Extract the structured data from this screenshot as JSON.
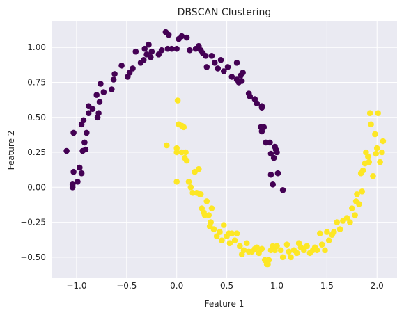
{
  "chart_data": {
    "type": "scatter",
    "title": "DBSCAN Clustering",
    "xlabel": "Feature 1",
    "ylabel": "Feature 2",
    "xlim": [
      -1.25,
      2.2
    ],
    "ylim": [
      -0.65,
      1.19
    ],
    "xticks": [
      -1.0,
      -0.5,
      0.0,
      0.5,
      1.0,
      1.5,
      2.0
    ],
    "yticks": [
      -0.5,
      -0.25,
      0.0,
      0.25,
      0.5,
      0.75,
      1.0
    ],
    "xtick_labels": [
      "−1.0",
      "−0.5",
      "0.0",
      "0.5",
      "1.0",
      "1.5",
      "2.0"
    ],
    "ytick_labels": [
      "−0.50",
      "−0.25",
      "0.00",
      "0.25",
      "0.50",
      "0.75",
      "1.00"
    ],
    "grid": true,
    "colors": {
      "background": "#eaeaf2",
      "grid": "#ffffff",
      "cluster_0": "#440154",
      "cluster_1": "#fde725"
    },
    "series": [
      {
        "color": "#440154",
        "points": [
          [
            -1.1,
            0.26
          ],
          [
            -1.04,
            0.0
          ],
          [
            -1.04,
            0.02
          ],
          [
            -1.03,
            0.11
          ],
          [
            -1.03,
            0.39
          ],
          [
            -0.99,
            0.04
          ],
          [
            -0.97,
            0.14
          ],
          [
            -0.95,
            0.1
          ],
          [
            -0.95,
            0.45
          ],
          [
            -0.93,
            0.48
          ],
          [
            -0.94,
            0.26
          ],
          [
            -0.92,
            0.32
          ],
          [
            -0.9,
            0.39
          ],
          [
            -0.91,
            0.27
          ],
          [
            -0.88,
            0.53
          ],
          [
            -0.88,
            0.58
          ],
          [
            -0.84,
            0.56
          ],
          [
            -0.8,
            0.66
          ],
          [
            -0.79,
            0.5
          ],
          [
            -0.78,
            0.53
          ],
          [
            -0.77,
            0.61
          ],
          [
            -0.76,
            0.74
          ],
          [
            -0.73,
            0.68
          ],
          [
            -0.65,
            0.7
          ],
          [
            -0.63,
            0.77
          ],
          [
            -0.62,
            0.81
          ],
          [
            -0.55,
            0.87
          ],
          [
            -0.49,
            0.79
          ],
          [
            -0.47,
            0.82
          ],
          [
            -0.44,
            0.85
          ],
          [
            -0.41,
            0.97
          ],
          [
            -0.36,
            0.89
          ],
          [
            -0.33,
            0.91
          ],
          [
            -0.32,
            0.99
          ],
          [
            -0.3,
            0.95
          ],
          [
            -0.26,
            0.93
          ],
          [
            -0.28,
            1.02
          ],
          [
            -0.25,
            0.97
          ],
          [
            -0.18,
            0.95
          ],
          [
            -0.15,
            0.98
          ],
          [
            -0.11,
            1.11
          ],
          [
            -0.09,
            0.99
          ],
          [
            -0.08,
            1.09
          ],
          [
            -0.05,
            0.99
          ],
          [
            0.0,
            0.99
          ],
          [
            0.02,
            1.06
          ],
          [
            0.05,
            1.08
          ],
          [
            0.1,
            1.07
          ],
          [
            0.13,
            0.98
          ],
          [
            0.19,
            0.99
          ],
          [
            0.22,
            1.01
          ],
          [
            0.24,
            0.98
          ],
          [
            0.26,
            0.96
          ],
          [
            0.29,
            0.94
          ],
          [
            0.3,
            0.86
          ],
          [
            0.35,
            0.94
          ],
          [
            0.38,
            0.89
          ],
          [
            0.41,
            0.85
          ],
          [
            0.44,
            0.91
          ],
          [
            0.47,
            0.83
          ],
          [
            0.51,
            0.86
          ],
          [
            0.55,
            0.79
          ],
          [
            0.6,
            0.89
          ],
          [
            0.6,
            0.77
          ],
          [
            0.62,
            0.75
          ],
          [
            0.64,
            0.8
          ],
          [
            0.65,
            0.76
          ],
          [
            0.66,
            0.82
          ],
          [
            0.72,
            0.67
          ],
          [
            0.73,
            0.65
          ],
          [
            0.78,
            0.63
          ],
          [
            0.8,
            0.6
          ],
          [
            0.85,
            0.57
          ],
          [
            0.85,
            0.58
          ],
          [
            0.84,
            0.43
          ],
          [
            0.85,
            0.4
          ],
          [
            0.87,
            0.43
          ],
          [
            0.89,
            0.32
          ],
          [
            0.93,
            0.32
          ],
          [
            0.94,
            0.24
          ],
          [
            0.94,
            0.09
          ],
          [
            0.96,
            0.02
          ],
          [
            0.97,
            0.21
          ],
          [
            0.98,
            0.29
          ],
          [
            0.99,
            0.27
          ],
          [
            1.0,
            0.25
          ],
          [
            1.01,
            0.1
          ],
          [
            1.06,
            -0.02
          ]
        ]
      },
      {
        "color": "#fde725",
        "points": [
          [
            -0.1,
            0.3
          ],
          [
            0.0,
            0.04
          ],
          [
            0.0,
            0.25
          ],
          [
            0.0,
            0.28
          ],
          [
            0.01,
            0.62
          ],
          [
            0.02,
            0.45
          ],
          [
            0.05,
            0.44
          ],
          [
            0.05,
            0.25
          ],
          [
            0.07,
            0.43
          ],
          [
            0.08,
            0.21
          ],
          [
            0.09,
            0.25
          ],
          [
            0.1,
            0.19
          ],
          [
            0.12,
            0.04
          ],
          [
            0.14,
            0.0
          ],
          [
            0.16,
            -0.04
          ],
          [
            0.18,
            0.11
          ],
          [
            0.2,
            -0.04
          ],
          [
            0.22,
            0.13
          ],
          [
            0.23,
            -0.05
          ],
          [
            0.24,
            -0.05
          ],
          [
            0.25,
            -0.15
          ],
          [
            0.27,
            -0.18
          ],
          [
            0.28,
            -0.2
          ],
          [
            0.3,
            -0.1
          ],
          [
            0.32,
            -0.2
          ],
          [
            0.33,
            -0.28
          ],
          [
            0.34,
            -0.25
          ],
          [
            0.35,
            -0.15
          ],
          [
            0.37,
            -0.3
          ],
          [
            0.4,
            -0.35
          ],
          [
            0.43,
            -0.32
          ],
          [
            0.45,
            -0.38
          ],
          [
            0.47,
            -0.27
          ],
          [
            0.5,
            -0.35
          ],
          [
            0.52,
            -0.33
          ],
          [
            0.53,
            -0.4
          ],
          [
            0.55,
            -0.33
          ],
          [
            0.58,
            -0.38
          ],
          [
            0.6,
            -0.33
          ],
          [
            0.63,
            -0.42
          ],
          [
            0.65,
            -0.48
          ],
          [
            0.67,
            -0.45
          ],
          [
            0.7,
            -0.4
          ],
          [
            0.72,
            -0.46
          ],
          [
            0.75,
            -0.46
          ],
          [
            0.78,
            -0.44
          ],
          [
            0.8,
            -0.43
          ],
          [
            0.82,
            -0.47
          ],
          [
            0.85,
            -0.44
          ],
          [
            0.88,
            -0.52
          ],
          [
            0.9,
            -0.55
          ],
          [
            0.91,
            -0.55
          ],
          [
            0.92,
            -0.52
          ],
          [
            0.94,
            -0.45
          ],
          [
            0.96,
            -0.42
          ],
          [
            0.98,
            -0.45
          ],
          [
            1.0,
            -0.42
          ],
          [
            1.04,
            -0.45
          ],
          [
            1.06,
            -0.5
          ],
          [
            1.1,
            -0.41
          ],
          [
            1.12,
            -0.46
          ],
          [
            1.14,
            -0.5
          ],
          [
            1.17,
            -0.45
          ],
          [
            1.2,
            -0.47
          ],
          [
            1.22,
            -0.4
          ],
          [
            1.24,
            -0.43
          ],
          [
            1.27,
            -0.45
          ],
          [
            1.3,
            -0.42
          ],
          [
            1.33,
            -0.47
          ],
          [
            1.36,
            -0.45
          ],
          [
            1.38,
            -0.43
          ],
          [
            1.4,
            -0.45
          ],
          [
            1.43,
            -0.33
          ],
          [
            1.45,
            -0.41
          ],
          [
            1.48,
            -0.45
          ],
          [
            1.5,
            -0.32
          ],
          [
            1.52,
            -0.38
          ],
          [
            1.55,
            -0.34
          ],
          [
            1.57,
            -0.32
          ],
          [
            1.6,
            -0.25
          ],
          [
            1.63,
            -0.3
          ],
          [
            1.66,
            -0.24
          ],
          [
            1.7,
            -0.22
          ],
          [
            1.73,
            -0.25
          ],
          [
            1.75,
            -0.15
          ],
          [
            1.78,
            -0.2
          ],
          [
            1.79,
            -0.1
          ],
          [
            1.8,
            -0.05
          ],
          [
            1.82,
            -0.12
          ],
          [
            1.84,
            0.1
          ],
          [
            1.85,
            -0.03
          ],
          [
            1.86,
            0.12
          ],
          [
            1.88,
            0.17
          ],
          [
            1.89,
            0.25
          ],
          [
            1.91,
            0.22
          ],
          [
            1.92,
            0.18
          ],
          [
            1.93,
            0.53
          ],
          [
            1.94,
            0.45
          ],
          [
            1.96,
            0.08
          ],
          [
            1.98,
            0.38
          ],
          [
            1.99,
            0.24
          ],
          [
            2.0,
            0.28
          ],
          [
            2.01,
            0.53
          ],
          [
            2.03,
            0.18
          ],
          [
            2.05,
            0.25
          ],
          [
            2.06,
            0.33
          ]
        ]
      }
    ]
  }
}
